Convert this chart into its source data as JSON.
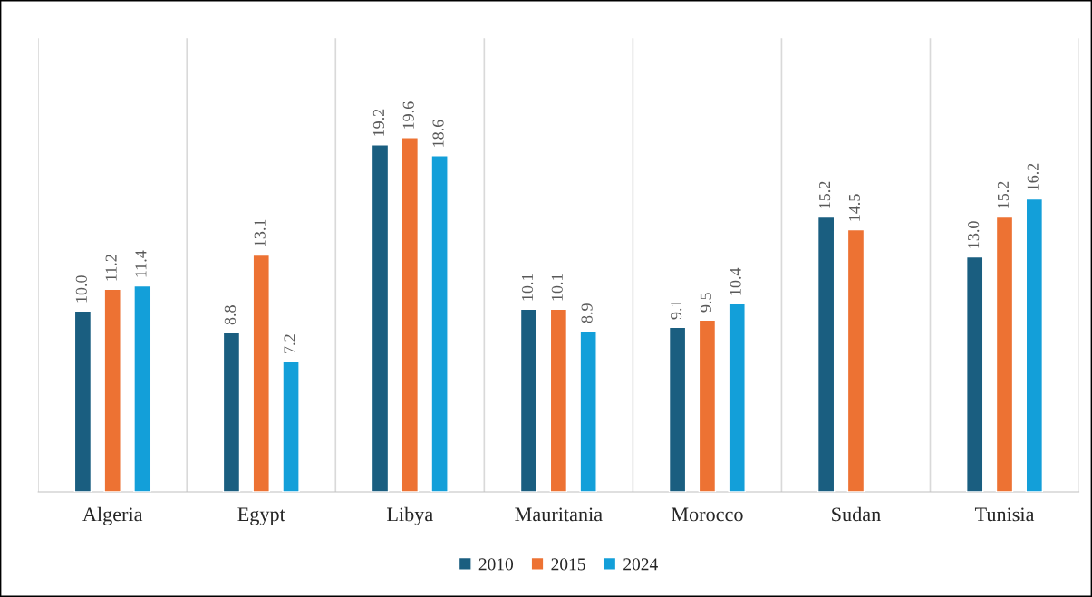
{
  "chart_data": {
    "type": "bar",
    "categories": [
      "Algeria",
      "Egypt",
      "Libya",
      "Mauritania",
      "Morocco",
      "Sudan",
      "Tunisia"
    ],
    "series": [
      {
        "name": "2010",
        "color": "#1a5e80",
        "values": [
          10.0,
          8.8,
          19.2,
          10.1,
          9.1,
          15.2,
          13.0
        ],
        "value_labels": [
          "10.0",
          "8.8",
          "19.2",
          "10.1",
          "9.1",
          "15.2",
          "13.0"
        ]
      },
      {
        "name": "2015",
        "color": "#ed7233",
        "values": [
          11.2,
          13.1,
          19.6,
          10.1,
          9.5,
          14.5,
          15.2
        ],
        "value_labels": [
          "11.2",
          "13.1",
          "19.6",
          "10.1",
          "9.5",
          "14.5",
          "15.2"
        ]
      },
      {
        "name": "2024",
        "color": "#139fd9",
        "values": [
          11.4,
          7.2,
          18.6,
          8.9,
          10.4,
          null,
          16.2
        ],
        "value_labels": [
          "11.4",
          "7.2",
          "18.6",
          "8.9",
          "10.4",
          null,
          "16.2"
        ]
      }
    ],
    "data_labels": true,
    "grid": "x",
    "legend": "bottom"
  }
}
